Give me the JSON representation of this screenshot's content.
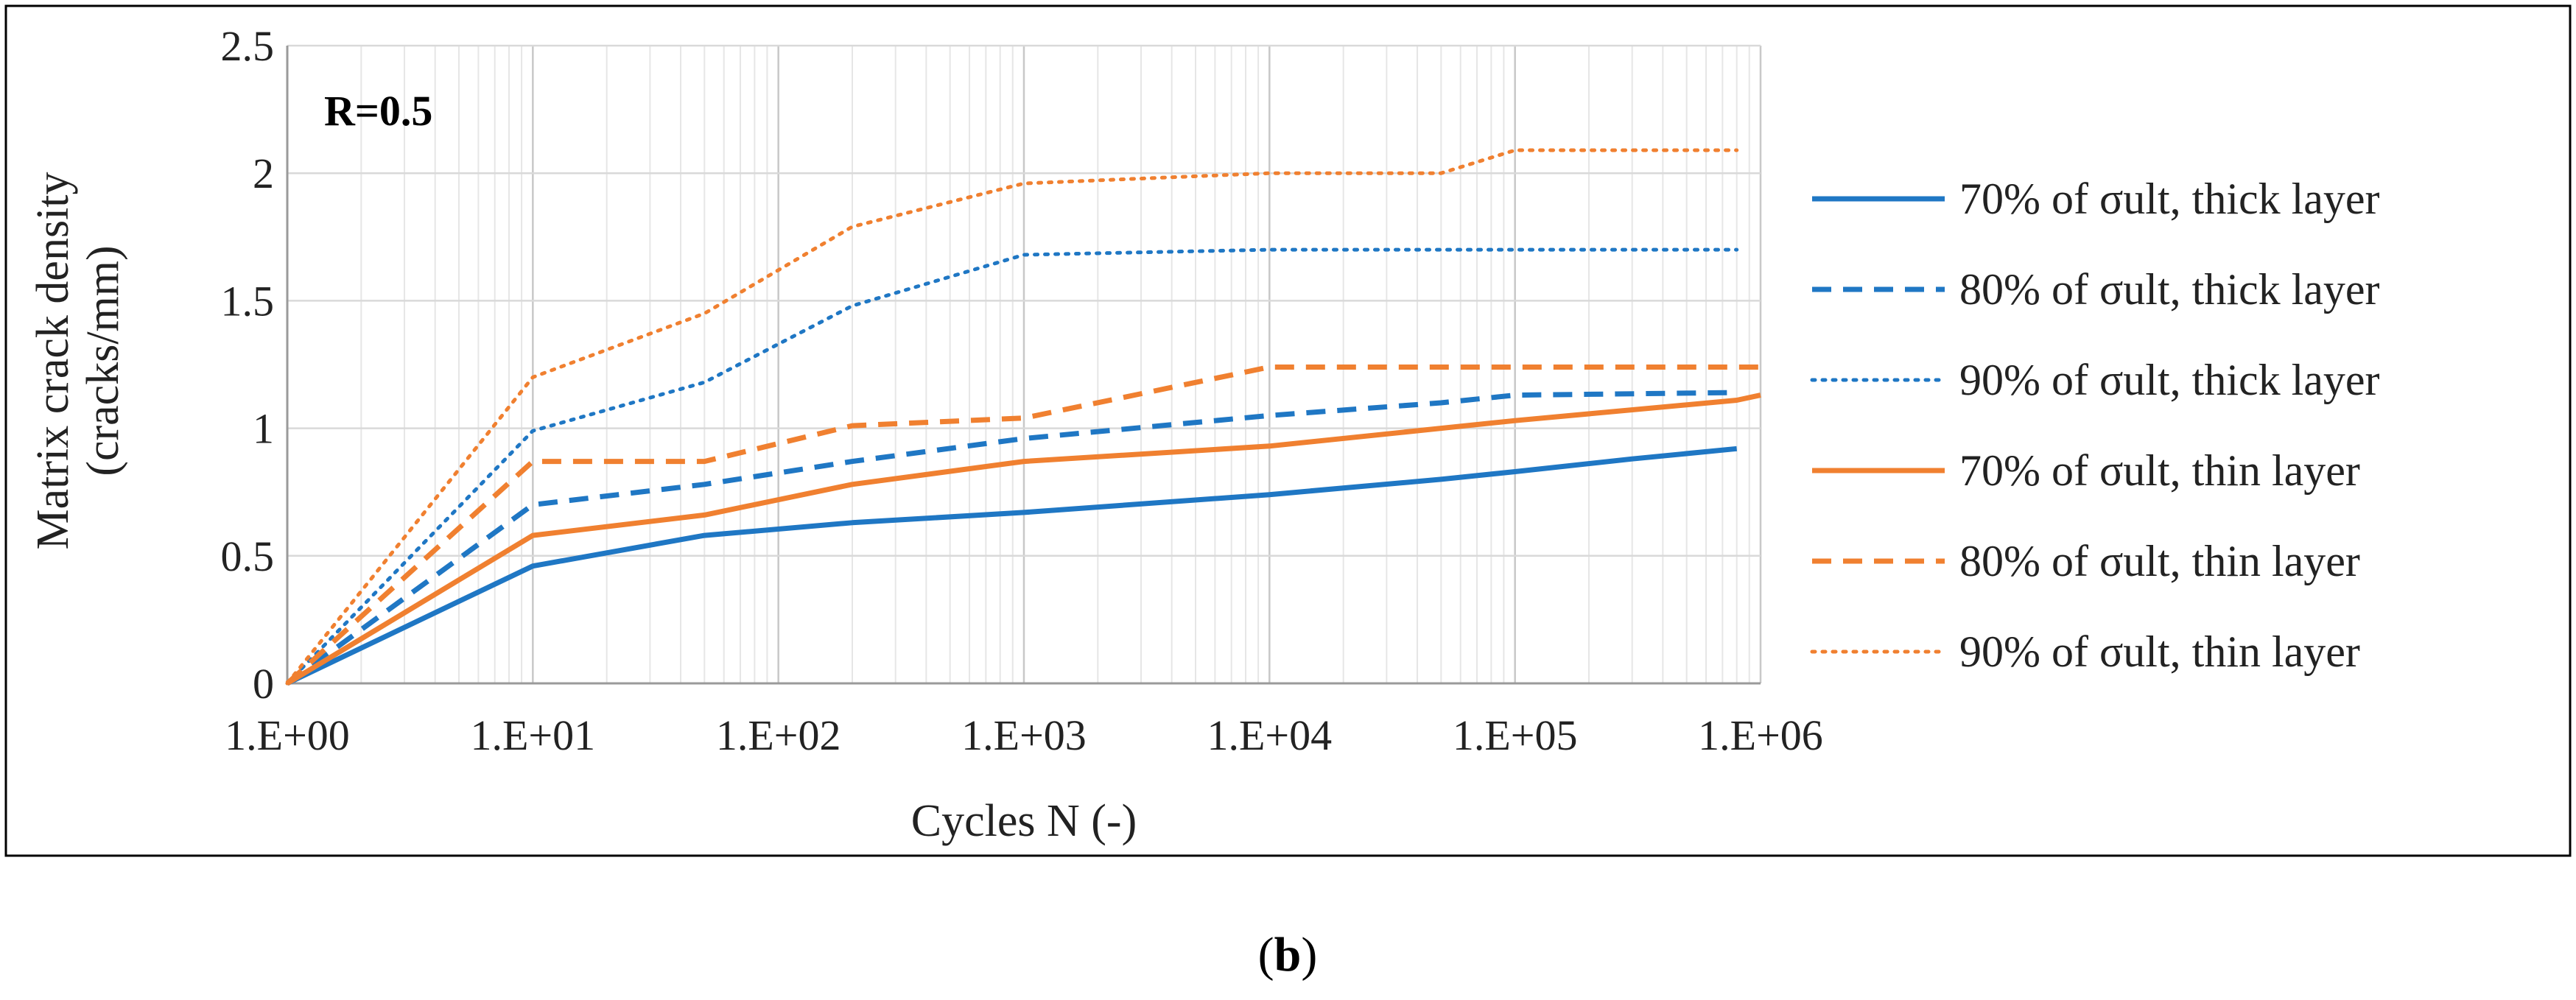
{
  "chart_data": {
    "type": "line",
    "xscale": "log",
    "xlim": [
      1,
      1000000
    ],
    "ylim": [
      0,
      2.5
    ],
    "yticks": [
      0,
      0.5,
      1,
      1.5,
      2,
      2.5
    ],
    "ytick_labels": [
      "0",
      "0.5",
      "1",
      "1.5",
      "2",
      "2.5"
    ],
    "xticks": [
      1,
      10,
      100,
      1000,
      10000,
      100000,
      1000000
    ],
    "xtick_labels": [
      "1.E+00",
      "1.E+01",
      "1.E+02",
      "1.E+03",
      "1.E+04",
      "1.E+05",
      "1.E+06"
    ],
    "xlabel": "Cycles N (-)",
    "ylabel_line1": "Matrix crack density",
    "ylabel_line2": "(cracks/mm)",
    "annotation": "R=0.5",
    "legend_position": "right",
    "grid": true,
    "series": [
      {
        "name": "70% of σult, thick layer",
        "color": "#1f77c4",
        "dash": "solid",
        "x": [
          1,
          10,
          50,
          200,
          1000,
          10000,
          50000,
          100000,
          300000,
          800000
        ],
        "y": [
          0,
          0.46,
          0.58,
          0.63,
          0.67,
          0.74,
          0.8,
          0.83,
          0.88,
          0.92
        ]
      },
      {
        "name": "80% of σult, thick layer",
        "color": "#1f77c4",
        "dash": "dashed",
        "x": [
          1,
          10,
          50,
          200,
          1000,
          10000,
          50000,
          100000,
          800000
        ],
        "y": [
          0,
          0.7,
          0.78,
          0.87,
          0.96,
          1.05,
          1.1,
          1.13,
          1.14
        ]
      },
      {
        "name": "90% of σult, thick layer",
        "color": "#1f77c4",
        "dash": "dotted",
        "x": [
          1,
          10,
          50,
          200,
          1000,
          10000,
          50000,
          100000,
          800000
        ],
        "y": [
          0,
          0.99,
          1.18,
          1.48,
          1.68,
          1.7,
          1.7,
          1.7,
          1.7
        ]
      },
      {
        "name": "70% of σult, thin layer",
        "color": "#f08030",
        "dash": "solid",
        "x": [
          1,
          10,
          50,
          200,
          1000,
          10000,
          100000,
          800000,
          1000000
        ],
        "y": [
          0,
          0.58,
          0.66,
          0.78,
          0.87,
          0.93,
          1.03,
          1.11,
          1.13
        ]
      },
      {
        "name": "80% of σult, thin layer",
        "color": "#f08030",
        "dash": "dashed",
        "x": [
          1,
          10,
          50,
          200,
          1000,
          10000,
          100000,
          800000,
          1000000
        ],
        "y": [
          0,
          0.87,
          0.87,
          1.01,
          1.04,
          1.24,
          1.24,
          1.24,
          1.24
        ]
      },
      {
        "name": "90% of σult, thin layer",
        "color": "#f08030",
        "dash": "dotted",
        "x": [
          1,
          10,
          50,
          200,
          1000,
          10000,
          50000,
          100000,
          800000
        ],
        "y": [
          0,
          1.2,
          1.45,
          1.79,
          1.96,
          2.0,
          2.0,
          2.09,
          2.09
        ]
      }
    ]
  },
  "caption": {
    "open": "(",
    "letter": "b",
    "close": ")"
  }
}
